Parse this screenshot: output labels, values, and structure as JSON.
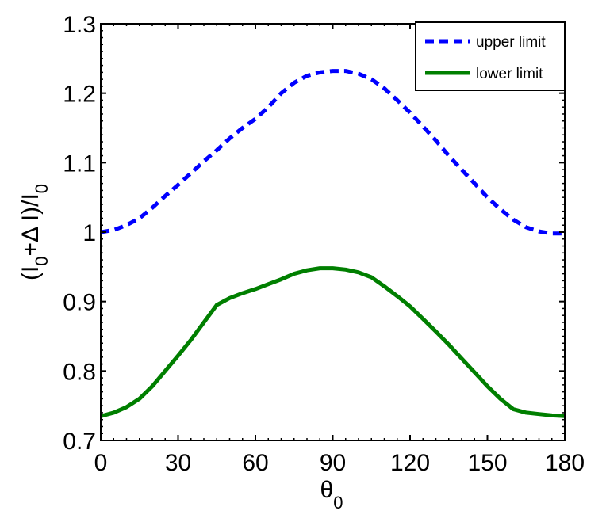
{
  "chart_data": {
    "type": "line",
    "xlabel": "θ",
    "xlabel_sub": "0",
    "ylabel_parts": [
      "(I",
      "0",
      "+Δ I)/I",
      "0"
    ],
    "xlim": [
      0,
      180
    ],
    "ylim": [
      0.7,
      1.3
    ],
    "xticks": [
      0,
      30,
      60,
      90,
      120,
      150,
      180
    ],
    "yticks": [
      0.7,
      0.8,
      0.9,
      1,
      1.1,
      1.2,
      1.3
    ],
    "ytick_labels": [
      "0.7",
      "0.8",
      "0.9",
      "1",
      "1.1",
      "1.2",
      "1.3"
    ],
    "grid": false,
    "legend_position": "top-right",
    "series": [
      {
        "name": "upper limit",
        "color": "#0000ff",
        "style": "dashed",
        "x": [
          0,
          5,
          10,
          15,
          20,
          25,
          30,
          35,
          40,
          45,
          50,
          55,
          60,
          65,
          70,
          75,
          80,
          85,
          90,
          95,
          100,
          105,
          110,
          115,
          120,
          125,
          130,
          135,
          140,
          145,
          150,
          155,
          160,
          165,
          170,
          175,
          180
        ],
        "y": [
          1.0,
          1.003,
          1.01,
          1.02,
          1.035,
          1.052,
          1.068,
          1.085,
          1.102,
          1.118,
          1.135,
          1.15,
          1.163,
          1.18,
          1.2,
          1.215,
          1.225,
          1.23,
          1.232,
          1.232,
          1.228,
          1.22,
          1.207,
          1.19,
          1.172,
          1.152,
          1.132,
          1.11,
          1.09,
          1.07,
          1.05,
          1.033,
          1.018,
          1.007,
          1.001,
          0.998,
          0.998
        ]
      },
      {
        "name": "lower limit",
        "color": "#007f00",
        "style": "solid",
        "x": [
          0,
          5,
          10,
          15,
          20,
          25,
          30,
          35,
          40,
          45,
          50,
          55,
          60,
          65,
          70,
          75,
          80,
          85,
          90,
          95,
          100,
          105,
          110,
          115,
          120,
          125,
          130,
          135,
          140,
          145,
          150,
          155,
          160,
          165,
          170,
          175,
          180
        ],
        "y": [
          0.735,
          0.74,
          0.748,
          0.76,
          0.778,
          0.8,
          0.822,
          0.845,
          0.87,
          0.895,
          0.905,
          0.912,
          0.918,
          0.925,
          0.932,
          0.94,
          0.945,
          0.948,
          0.948,
          0.946,
          0.942,
          0.935,
          0.922,
          0.908,
          0.893,
          0.875,
          0.857,
          0.838,
          0.818,
          0.798,
          0.778,
          0.76,
          0.745,
          0.74,
          0.738,
          0.736,
          0.735
        ]
      }
    ]
  }
}
